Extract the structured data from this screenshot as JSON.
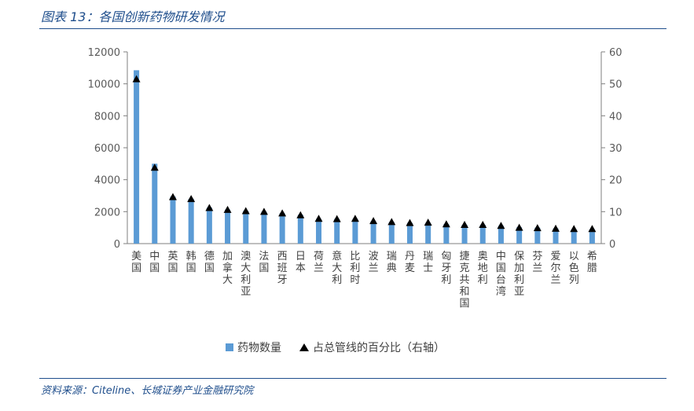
{
  "figure_title": "图表 13：各国创新药物研发情况",
  "source": "资料来源：Citeline、长城证券产业金融研究院",
  "colors": {
    "bar": "#5b9bd5",
    "marker": "#000000",
    "axis": "#7f7f7f",
    "title": "#1f4e8c"
  },
  "chart_data": {
    "type": "bar",
    "categories": [
      "美国",
      "中国",
      "英国",
      "韩国",
      "德国",
      "加拿大",
      "澳大利亚",
      "法国",
      "西班牙",
      "日本",
      "荷兰",
      "意大利",
      "比利时",
      "波兰",
      "瑞典",
      "丹麦",
      "瑞士",
      "匈牙利",
      "捷克共和国",
      "奥地利",
      "中国台湾",
      "保加利亚",
      "芬兰",
      "爱尔兰",
      "以色列",
      "希腊"
    ],
    "series": [
      {
        "name": "药物数量",
        "kind": "bar",
        "axis": "left",
        "values": [
          10850,
          5000,
          2950,
          2800,
          2250,
          2130,
          2050,
          2000,
          1900,
          1800,
          1550,
          1550,
          1550,
          1400,
          1350,
          1300,
          1300,
          1220,
          1180,
          1180,
          1120,
          1020,
          1000,
          950,
          900,
          900
        ]
      },
      {
        "name": "占总管线的百分比（右轴）",
        "kind": "marker",
        "axis": "right",
        "values": [
          51.5,
          23.8,
          14.6,
          14.0,
          11.2,
          10.6,
          10.2,
          10.0,
          9.5,
          8.9,
          7.8,
          7.7,
          7.8,
          7.1,
          6.8,
          6.5,
          6.6,
          6.1,
          5.9,
          5.9,
          5.6,
          5.0,
          4.9,
          4.7,
          4.6,
          4.6
        ]
      }
    ],
    "y_left": {
      "ylim": [
        0,
        12000
      ],
      "ticks": [
        "0",
        "2000",
        "4000",
        "6000",
        "8000",
        "10000",
        "12000"
      ]
    },
    "y_right": {
      "ylim": [
        0,
        60
      ],
      "ticks": [
        "0",
        "10",
        "20",
        "30",
        "40",
        "50",
        "60"
      ]
    },
    "grid": false,
    "legend": {
      "placement": "bottom-center",
      "entries": [
        "药物数量",
        "占总管线的百分比（右轴）"
      ]
    }
  }
}
